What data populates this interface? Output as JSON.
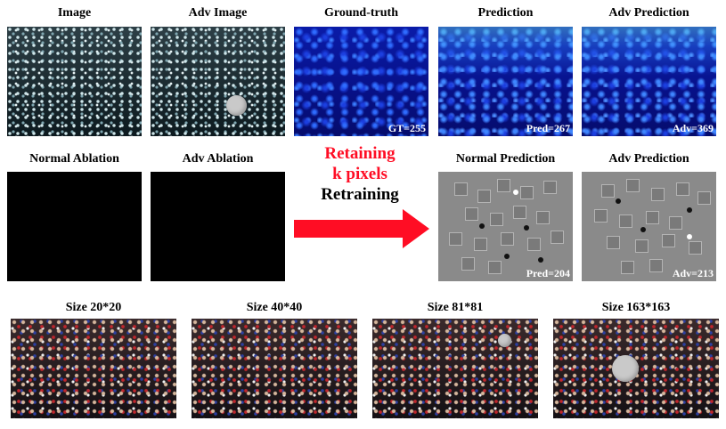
{
  "row1": {
    "titles": [
      "Image",
      "Adv Image",
      "Ground-truth",
      "Prediction",
      "Adv Prediction"
    ],
    "labels": {
      "gt": "GT=255",
      "pred": "Pred=267",
      "adv": "Adv=369"
    }
  },
  "row2": {
    "titles": [
      "Normal Ablation",
      "Adv Ablation",
      "Normal Prediction",
      "Adv Prediction"
    ],
    "arrow_line1": "Retaining",
    "arrow_line2": "k pixels",
    "arrow_line3": "Retraining",
    "labels": {
      "pred": "Pred=204",
      "adv": "Adv=213"
    }
  },
  "row3": {
    "titles": [
      "Size 20*20",
      "Size 40*40",
      "Size 81*81",
      "Size 163*163"
    ]
  },
  "colors": {
    "arrow": "#ff0d24",
    "accent_text": "#ff0d24"
  }
}
